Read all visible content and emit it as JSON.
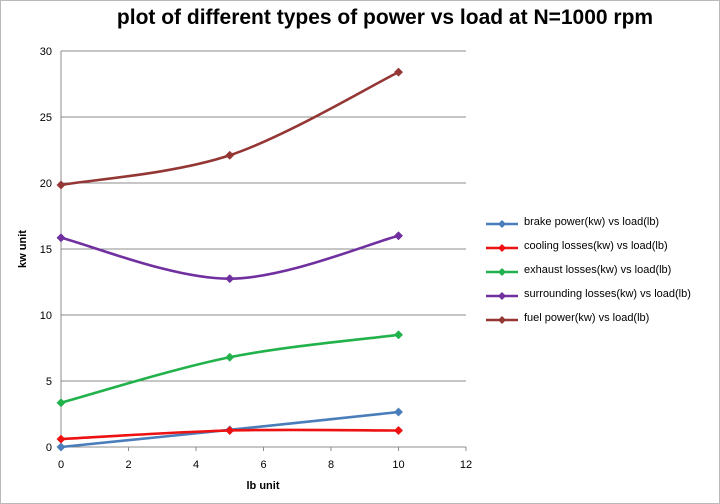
{
  "chart_data": {
    "type": "line",
    "title": "plot of different types of power vs load at N=1000 rpm",
    "xlabel": "lb unit",
    "ylabel": "kw unit",
    "xlim": [
      0,
      12
    ],
    "ylim": [
      0,
      30
    ],
    "x_ticks": [
      "0",
      "2",
      "4",
      "6",
      "8",
      "10",
      "12"
    ],
    "y_ticks": [
      "0",
      "5",
      "10",
      "15",
      "20",
      "25",
      "30"
    ],
    "grid": "horizontal",
    "legend_position": "right",
    "x": [
      0,
      5,
      10
    ],
    "series": [
      {
        "name": "brake power(kw) vs load(lb)",
        "color": "#4a7ebb",
        "values": [
          0,
          1.3,
          2.65
        ]
      },
      {
        "name": "cooling losses(kw) vs load(lb)",
        "color": "#ee1111",
        "values": [
          0.6,
          1.25,
          1.25
        ]
      },
      {
        "name": "exhaust losses(kw) vs load(lb)",
        "color": "#22b24c",
        "values": [
          3.35,
          6.8,
          8.5
        ]
      },
      {
        "name": "surrounding losses(kw) vs load(lb)",
        "color": "#7030a0",
        "values": [
          15.85,
          12.75,
          16.0
        ]
      },
      {
        "name": "fuel power(kw) vs load(lb)",
        "color": "#943634",
        "values": [
          19.85,
          22.1,
          28.4
        ]
      }
    ]
  }
}
